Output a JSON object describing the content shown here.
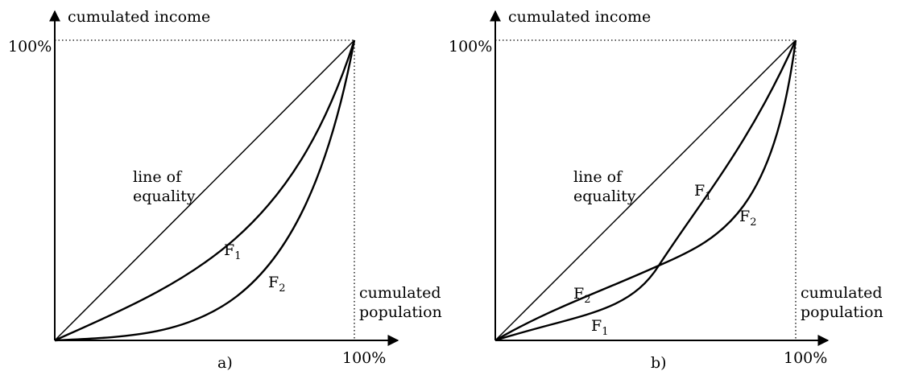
{
  "panels": [
    {
      "id": "a",
      "y_axis_label": "cumulated income",
      "y_tick": "100%",
      "x_axis_label_line1": "cumulated",
      "x_axis_label_line2": "population",
      "x_tick": "100%",
      "equality_label_line1": "line of",
      "equality_label_line2": "equality",
      "curve1": {
        "letter": "F",
        "sub": "1"
      },
      "curve2": {
        "letter": "F",
        "sub": "2"
      },
      "caption": "a)"
    },
    {
      "id": "b",
      "y_axis_label": "cumulated income",
      "y_tick": "100%",
      "x_axis_label_line1": "cumulated",
      "x_axis_label_line2": "population",
      "x_tick": "100%",
      "equality_label_line1": "line of",
      "equality_label_line2": "equality",
      "curve1_upper": {
        "letter": "F",
        "sub": "1"
      },
      "curve2_upper": {
        "letter": "F",
        "sub": "2"
      },
      "curve2_lower": {
        "letter": "F",
        "sub": "2"
      },
      "curve1_lower": {
        "letter": "F",
        "sub": "1"
      },
      "caption": "b)"
    }
  ]
}
